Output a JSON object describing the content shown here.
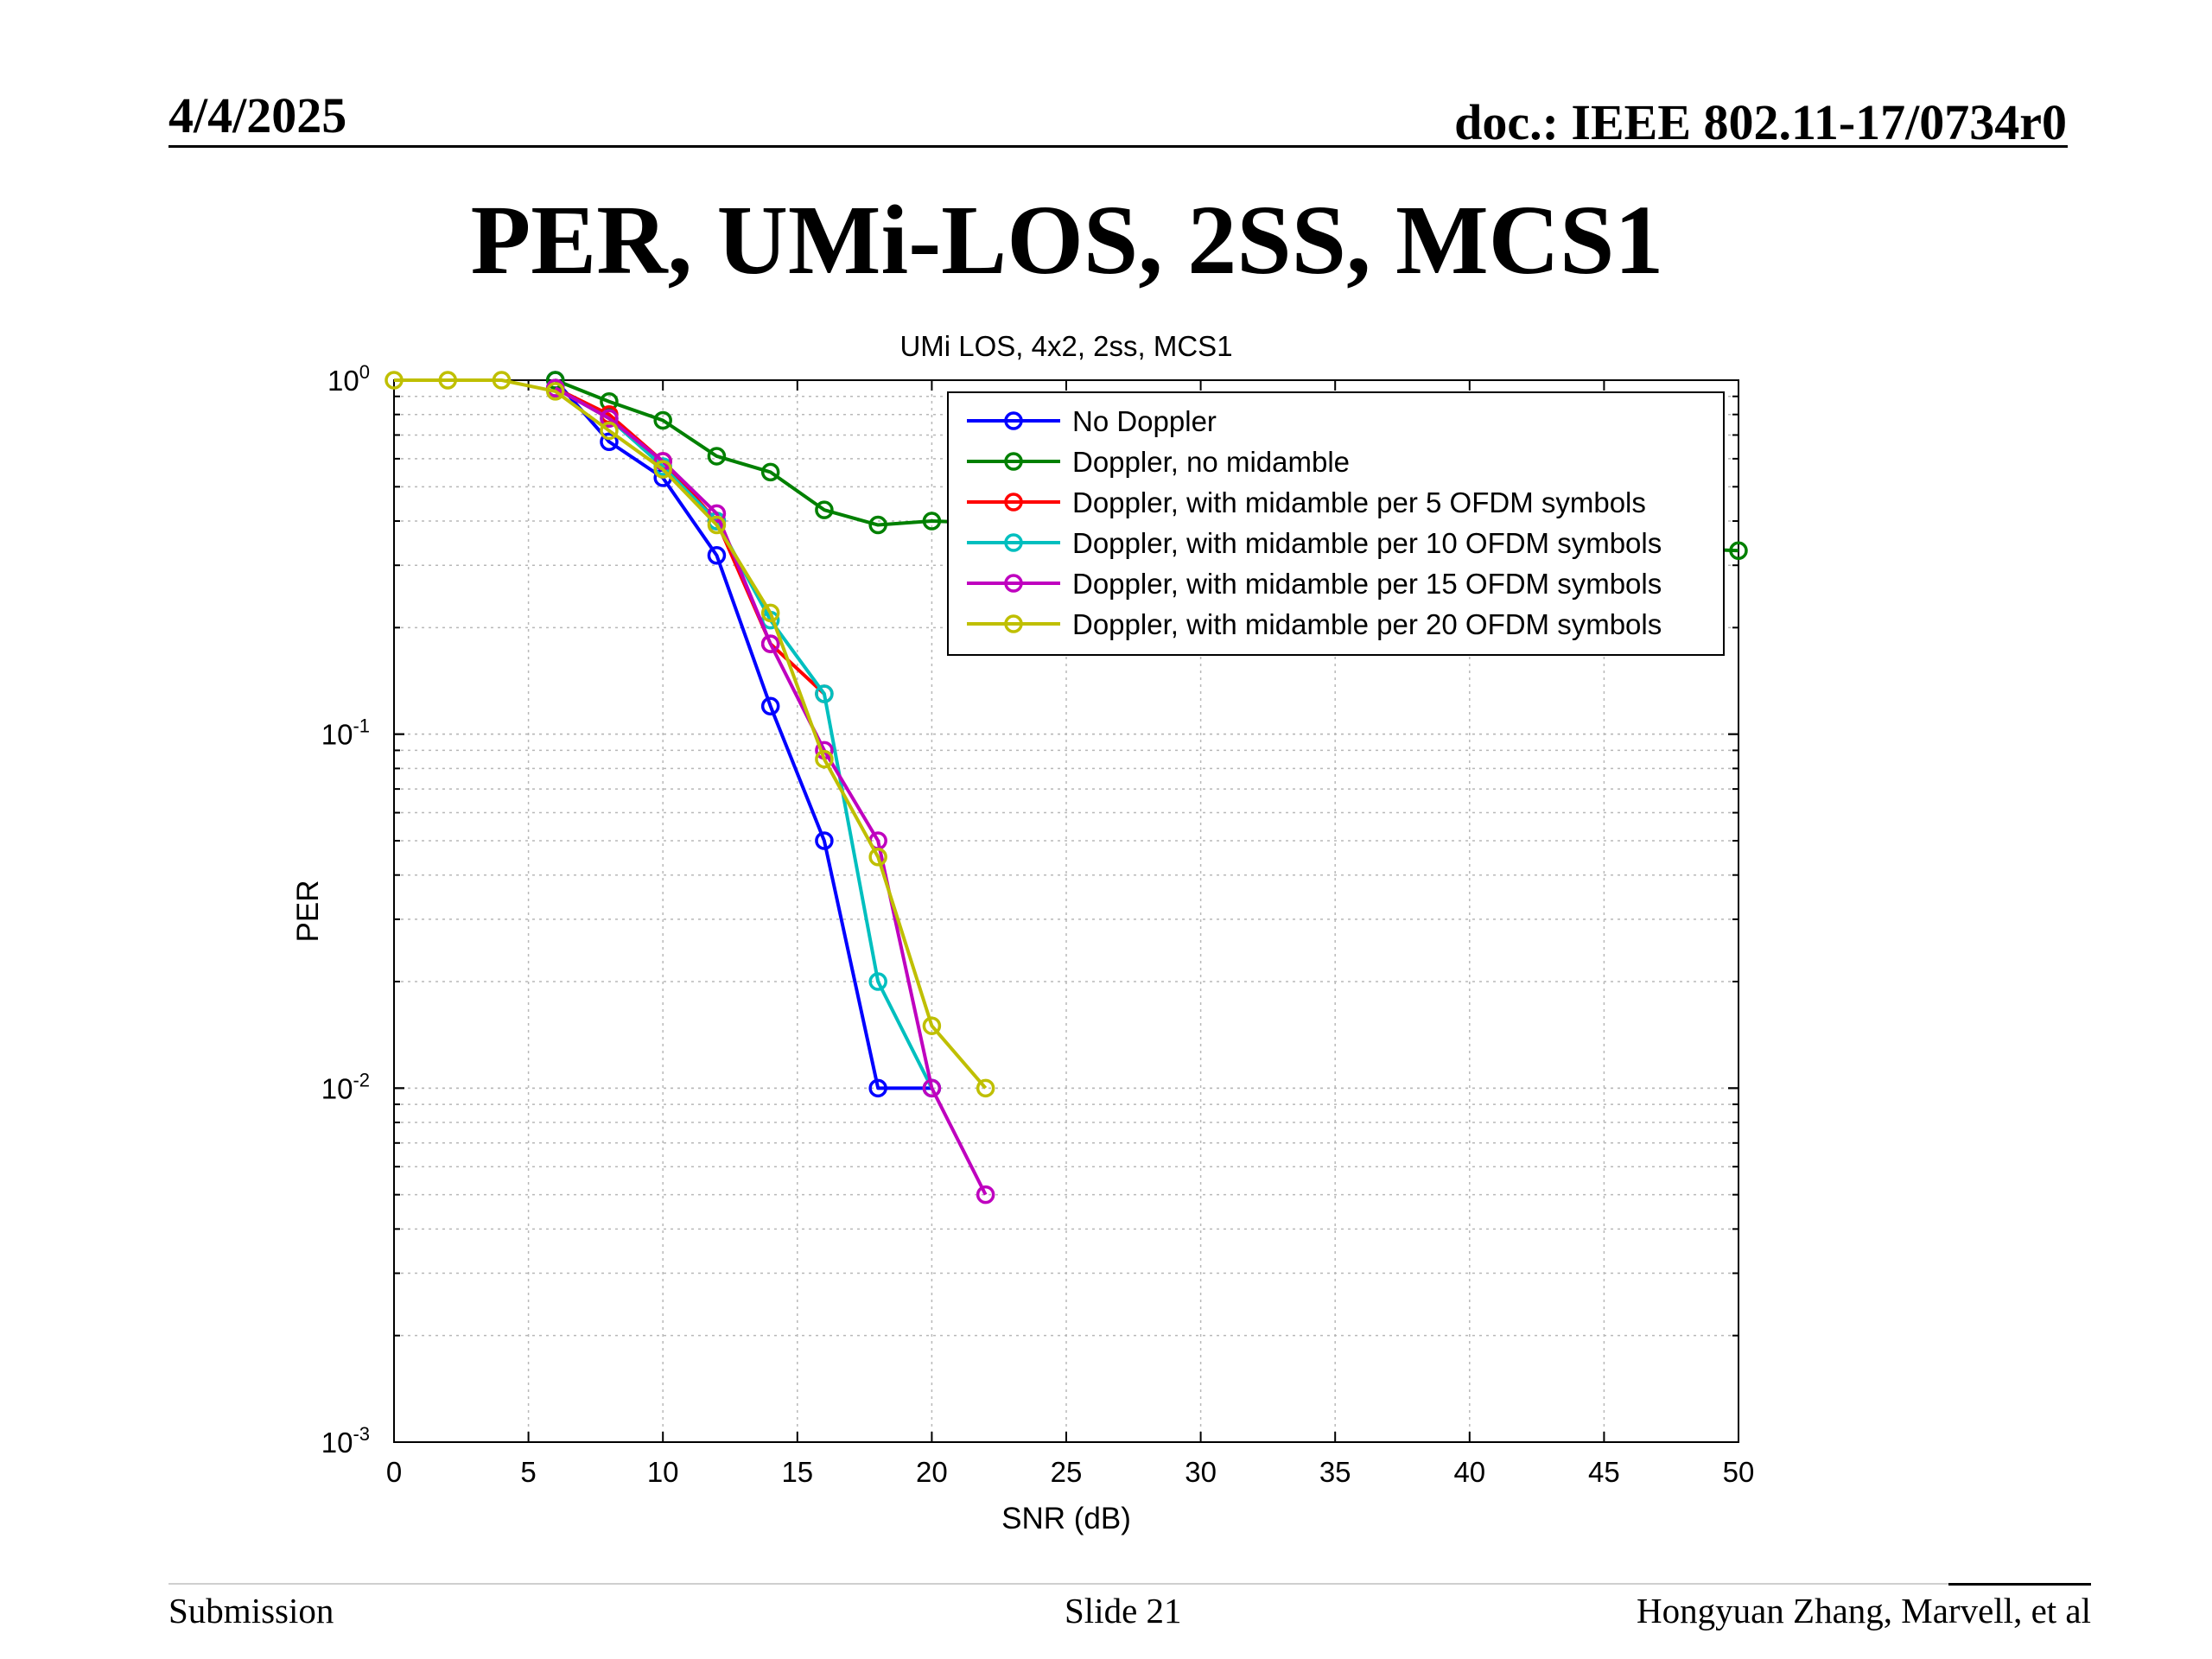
{
  "header": {
    "date": "4/4/2025",
    "doc": "doc.: IEEE 802.11-17/0734r0"
  },
  "slide_title": "PER, UMi-LOS, 2SS, MCS1",
  "footer": {
    "left": "Submission",
    "center": "Slide 21",
    "right": "Hongyuan Zhang, Marvell, et al"
  },
  "chart_data": {
    "type": "line",
    "title": "UMi LOS, 4x2, 2ss, MCS1",
    "xlabel": "SNR (dB)",
    "ylabel": "PER",
    "xlim": [
      0,
      50
    ],
    "ylim": [
      0.001,
      1
    ],
    "yscale": "log",
    "grid": true,
    "legend_position": "top-right",
    "xticks": [
      "0",
      "5",
      "10",
      "15",
      "20",
      "25",
      "30",
      "35",
      "40",
      "45",
      "50"
    ],
    "yticks": [
      {
        "base": "10",
        "exp": "0"
      },
      {
        "base": "10",
        "exp": "-1"
      },
      {
        "base": "10",
        "exp": "-2"
      },
      {
        "base": "10",
        "exp": "-3"
      }
    ],
    "series": [
      {
        "name": "No Doppler",
        "color": "#0000ff",
        "x": [
          6,
          8,
          10,
          12,
          14,
          16,
          18,
          20
        ],
        "y": [
          1.0,
          0.67,
          0.53,
          0.32,
          0.12,
          0.05,
          0.01,
          0.01
        ]
      },
      {
        "name": "Doppler, no midamble",
        "color": "#008000",
        "x": [
          6,
          8,
          10,
          12,
          14,
          16,
          18,
          20,
          50
        ],
        "y": [
          1.0,
          0.87,
          0.77,
          0.61,
          0.55,
          0.43,
          0.39,
          0.4,
          0.33
        ]
      },
      {
        "name": "Doppler, with midamble per 5 OFDM symbols",
        "color": "#ff0000",
        "x": [
          6,
          8,
          10,
          12,
          14,
          16
        ],
        "y": [
          0.95,
          0.8,
          0.59,
          0.4,
          0.18,
          0.13
        ]
      },
      {
        "name": "Doppler, with midamble per 10 OFDM symbols",
        "color": "#00bfbf",
        "x": [
          6,
          8,
          10,
          12,
          14,
          16,
          18,
          20
        ],
        "y": [
          0.95,
          0.78,
          0.57,
          0.4,
          0.21,
          0.13,
          0.02,
          0.01
        ]
      },
      {
        "name": "Doppler, with midamble per 15 OFDM symbols",
        "color": "#bf00bf",
        "x": [
          6,
          8,
          10,
          12,
          14,
          16,
          18,
          20,
          22
        ],
        "y": [
          0.95,
          0.78,
          0.59,
          0.42,
          0.18,
          0.09,
          0.05,
          0.01,
          0.005
        ]
      },
      {
        "name": "Doppler, with midamble per 20 OFDM symbols",
        "color": "#bfbf00",
        "x": [
          0,
          2,
          4,
          6,
          8,
          10,
          12,
          14,
          16,
          18,
          20,
          22
        ],
        "y": [
          1.0,
          1.0,
          1.0,
          0.93,
          0.72,
          0.56,
          0.39,
          0.22,
          0.085,
          0.045,
          0.015,
          0.01
        ]
      }
    ]
  }
}
